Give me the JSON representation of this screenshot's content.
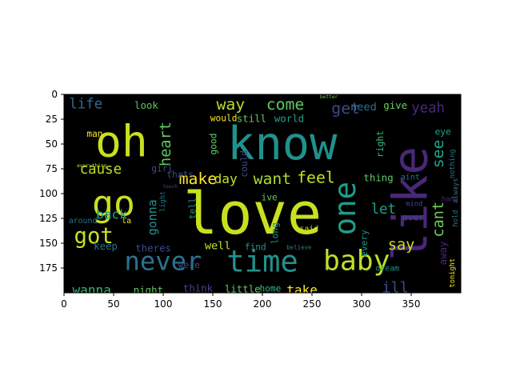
{
  "image": {
    "type": "wordcloud",
    "x_ticks": [
      0,
      50,
      100,
      150,
      200,
      250,
      300,
      350
    ],
    "y_ticks": [
      0,
      25,
      50,
      75,
      100,
      125,
      150,
      175
    ],
    "xlim": [
      0,
      400
    ],
    "ylim": [
      0,
      200
    ],
    "background": "#000000",
    "words": [
      {
        "text": "oh",
        "x": 58,
        "y": 47,
        "size": 44,
        "color": "#c8e020"
      },
      {
        "text": "know",
        "x": 220,
        "y": 50,
        "size": 46,
        "color": "#21918c"
      },
      {
        "text": "love",
        "x": 190,
        "y": 120,
        "size": 58,
        "color": "#c8e020"
      },
      {
        "text": "like",
        "x": 350,
        "y": 110,
        "size": 48,
        "color": "#482878",
        "rotate": true
      },
      {
        "text": "go",
        "x": 50,
        "y": 110,
        "size": 36,
        "color": "#c8e020"
      },
      {
        "text": "never",
        "x": 100,
        "y": 168,
        "size": 26,
        "color": "#2c728e"
      },
      {
        "text": "time",
        "x": 200,
        "y": 168,
        "size": 30,
        "color": "#21918c"
      },
      {
        "text": "baby",
        "x": 295,
        "y": 168,
        "size": 28,
        "color": "#bddf26"
      },
      {
        "text": "one",
        "x": 283,
        "y": 115,
        "size": 30,
        "color": "#1f9e89",
        "rotate": true
      },
      {
        "text": "got",
        "x": 30,
        "y": 143,
        "size": 22,
        "color": "#c8e020"
      },
      {
        "text": "way",
        "x": 168,
        "y": 10,
        "size": 16,
        "color": "#b5de2b"
      },
      {
        "text": "come",
        "x": 223,
        "y": 10,
        "size": 16,
        "color": "#5ec962"
      },
      {
        "text": "get",
        "x": 284,
        "y": 14,
        "size": 16,
        "color": "#3e4989"
      },
      {
        "text": "yeah",
        "x": 367,
        "y": 14,
        "size": 14,
        "color": "#482878"
      },
      {
        "text": "need",
        "x": 302,
        "y": 13,
        "size": 11,
        "color": "#2c728e"
      },
      {
        "text": "life",
        "x": 22,
        "y": 10,
        "size": 14,
        "color": "#31688e"
      },
      {
        "text": "heart",
        "x": 103,
        "y": 50,
        "size": 15,
        "color": "#5ec962",
        "rotate": true
      },
      {
        "text": "cause",
        "x": 37,
        "y": 76,
        "size": 14,
        "color": "#bddf26"
      },
      {
        "text": "make",
        "x": 135,
        "y": 85,
        "size": 16,
        "color": "#fde725"
      },
      {
        "text": "day",
        "x": 163,
        "y": 85,
        "size": 13,
        "color": "#c8e020"
      },
      {
        "text": "want",
        "x": 210,
        "y": 85,
        "size": 16,
        "color": "#a8db34"
      },
      {
        "text": "feel",
        "x": 254,
        "y": 84,
        "size": 16,
        "color": "#c8e020"
      },
      {
        "text": "see",
        "x": 377,
        "y": 60,
        "size": 16,
        "color": "#1fa187",
        "rotate": true
      },
      {
        "text": "let",
        "x": 322,
        "y": 116,
        "size": 14,
        "color": "#1fa187"
      },
      {
        "text": "cant",
        "x": 378,
        "y": 126,
        "size": 15,
        "color": "#6ccd5a",
        "rotate": true
      },
      {
        "text": "say",
        "x": 340,
        "y": 152,
        "size": 15,
        "color": "#c8e020"
      },
      {
        "text": "ill",
        "x": 334,
        "y": 195,
        "size": 15,
        "color": "#3e4989"
      },
      {
        "text": "take",
        "x": 240,
        "y": 197,
        "size": 13,
        "color": "#fde725"
      },
      {
        "text": "wanna",
        "x": 28,
        "y": 197,
        "size": 13,
        "color": "#35b779"
      },
      {
        "text": "back",
        "x": 48,
        "y": 121,
        "size": 13,
        "color": "#1fa187"
      },
      {
        "text": "gonna",
        "x": 89,
        "y": 124,
        "size": 12,
        "color": "#21918c",
        "rotate": true
      },
      {
        "text": "keep",
        "x": 42,
        "y": 153,
        "size": 10,
        "color": "#2c728e"
      },
      {
        "text": "theres",
        "x": 90,
        "y": 155,
        "size": 10,
        "color": "#3e4989"
      },
      {
        "text": "well",
        "x": 155,
        "y": 153,
        "size": 11,
        "color": "#c8e020"
      },
      {
        "text": "night",
        "x": 85,
        "y": 197,
        "size": 10,
        "color": "#5ec962"
      },
      {
        "text": "think",
        "x": 135,
        "y": 195,
        "size": 10,
        "color": "#3e4989"
      },
      {
        "text": "little",
        "x": 180,
        "y": 196,
        "size": 10,
        "color": "#5ec962"
      },
      {
        "text": "home",
        "x": 208,
        "y": 196,
        "size": 9,
        "color": "#35b779"
      },
      {
        "text": "look",
        "x": 83,
        "y": 11,
        "size": 10,
        "color": "#5ec962"
      },
      {
        "text": "still",
        "x": 189,
        "y": 24,
        "size": 10,
        "color": "#5ec962"
      },
      {
        "text": "world",
        "x": 227,
        "y": 24,
        "size": 10,
        "color": "#1fa187"
      },
      {
        "text": "give",
        "x": 334,
        "y": 11,
        "size": 10,
        "color": "#6ccd5a"
      },
      {
        "text": "eye",
        "x": 382,
        "y": 38,
        "size": 9,
        "color": "#1fa187"
      },
      {
        "text": "man",
        "x": 31,
        "y": 40,
        "size": 9,
        "color": "#fde725"
      },
      {
        "text": "girl",
        "x": 99,
        "y": 75,
        "size": 9,
        "color": "#3e4989"
      },
      {
        "text": "thats",
        "x": 117,
        "y": 81,
        "size": 9,
        "color": "#3e4989"
      },
      {
        "text": "good",
        "x": 151,
        "y": 50,
        "size": 9,
        "color": "#5ec962",
        "rotate": true
      },
      {
        "text": "would",
        "x": 161,
        "y": 24,
        "size": 9,
        "color": "#fde725"
      },
      {
        "text": "could",
        "x": 182,
        "y": 70,
        "size": 9,
        "color": "#3e4989",
        "rotate": true
      },
      {
        "text": "ive",
        "x": 207,
        "y": 104,
        "size": 9,
        "color": "#5ec962"
      },
      {
        "text": "thing",
        "x": 317,
        "y": 84,
        "size": 10,
        "color": "#5ec962"
      },
      {
        "text": "right",
        "x": 319,
        "y": 50,
        "size": 9,
        "color": "#35b779",
        "rotate": true
      },
      {
        "text": "aint",
        "x": 349,
        "y": 84,
        "size": 8,
        "color": "#2c728e"
      },
      {
        "text": "nothing",
        "x": 392,
        "y": 70,
        "size": 7,
        "color": "#2c728e",
        "rotate": true
      },
      {
        "text": "always",
        "x": 395,
        "y": 97,
        "size": 7,
        "color": "#2c728e",
        "rotate": true
      },
      {
        "text": "mind",
        "x": 353,
        "y": 111,
        "size": 7,
        "color": "#3e4989"
      },
      {
        "text": "ever",
        "x": 352,
        "y": 124,
        "size": 9,
        "color": "#3e4989"
      },
      {
        "text": "every",
        "x": 303,
        "y": 150,
        "size": 9,
        "color": "#21918c",
        "rotate": true
      },
      {
        "text": "away",
        "x": 382,
        "y": 160,
        "size": 10,
        "color": "#482878",
        "rotate": true
      },
      {
        "text": "tonight",
        "x": 392,
        "y": 180,
        "size": 7,
        "color": "#fde725",
        "rotate": true
      },
      {
        "text": "hold",
        "x": 395,
        "y": 125,
        "size": 7,
        "color": "#2c728e",
        "rotate": true
      },
      {
        "text": "hand",
        "x": 389,
        "y": 106,
        "size": 7,
        "color": "#482878"
      },
      {
        "text": "dream",
        "x": 326,
        "y": 176,
        "size": 8,
        "color": "#21918c"
      },
      {
        "text": "said",
        "x": 247,
        "y": 136,
        "size": 8,
        "color": "#c8e020"
      },
      {
        "text": "believe",
        "x": 237,
        "y": 154,
        "size": 6,
        "color": "#21918c"
      },
      {
        "text": "long",
        "x": 213,
        "y": 140,
        "size": 9,
        "color": "#21918c",
        "rotate": true
      },
      {
        "text": "find",
        "x": 193,
        "y": 154,
        "size": 9,
        "color": "#21918c"
      },
      {
        "text": "tell",
        "x": 130,
        "y": 115,
        "size": 9,
        "color": "#21918c",
        "rotate": true
      },
      {
        "text": "light",
        "x": 100,
        "y": 108,
        "size": 7,
        "color": "#2c728e",
        "rotate": true
      },
      {
        "text": "la",
        "x": 63,
        "y": 128,
        "size": 8,
        "color": "#fde725"
      },
      {
        "text": "around",
        "x": 19,
        "y": 128,
        "size": 8,
        "color": "#2c728e"
      },
      {
        "text": "were",
        "x": 126,
        "y": 172,
        "size": 9,
        "color": "#3e4989"
      },
      {
        "text": "better",
        "x": 267,
        "y": 3,
        "size": 5,
        "color": "#6ccd5a"
      },
      {
        "text": "everything",
        "x": 28,
        "y": 72,
        "size": 5,
        "color": "#c8e020"
      },
      {
        "text": "touch",
        "x": 107,
        "y": 93,
        "size": 5,
        "color": "#3e4989"
      }
    ]
  }
}
